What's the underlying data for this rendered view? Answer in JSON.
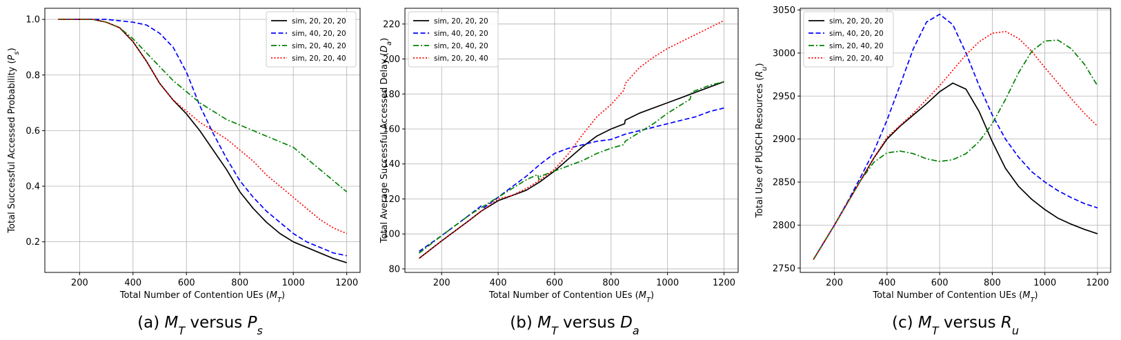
{
  "chart_data": [
    {
      "type": "line",
      "caption": "(a) M_T versus P_s",
      "xlabel": "Total Number of Contention UEs (M_T)",
      "ylabel": "Total Successful Accessed Probability (P_s)",
      "xlim": [
        70,
        1250
      ],
      "ylim": [
        0.09,
        1.04
      ],
      "xticks": [
        200,
        400,
        600,
        800,
        1000,
        1200
      ],
      "yticks": [
        0.2,
        0.4,
        0.6,
        0.8,
        1.0
      ],
      "ytick_labels": [
        "0.2",
        "0.4",
        "0.6",
        "0.8",
        "1.0"
      ],
      "grid": true,
      "legend_position": "top-right",
      "series": [
        {
          "name": "sim, 20, 20, 20",
          "color": "#000000",
          "dash": "solid",
          "x": [
            120,
            200,
            250,
            300,
            350,
            400,
            450,
            500,
            550,
            600,
            650,
            700,
            750,
            800,
            850,
            900,
            950,
            1000,
            1050,
            1100,
            1150,
            1200
          ],
          "y": [
            1.0,
            1.0,
            1.0,
            0.99,
            0.97,
            0.92,
            0.85,
            0.77,
            0.71,
            0.66,
            0.6,
            0.53,
            0.46,
            0.38,
            0.32,
            0.27,
            0.23,
            0.2,
            0.18,
            0.16,
            0.14,
            0.125
          ]
        },
        {
          "name": "sim, 40, 20, 20",
          "color": "#0000ff",
          "dash": "dashed",
          "x": [
            120,
            200,
            300,
            400,
            450,
            500,
            550,
            600,
            650,
            700,
            750,
            800,
            850,
            900,
            950,
            1000,
            1050,
            1100,
            1150,
            1200
          ],
          "y": [
            1.0,
            1.0,
            1.0,
            0.99,
            0.98,
            0.95,
            0.9,
            0.81,
            0.69,
            0.59,
            0.5,
            0.42,
            0.36,
            0.31,
            0.27,
            0.23,
            0.2,
            0.18,
            0.16,
            0.15
          ]
        },
        {
          "name": "sim, 20, 40, 20",
          "color": "#008000",
          "dash": "dashdot",
          "x": [
            120,
            200,
            250,
            300,
            350,
            400,
            450,
            500,
            550,
            600,
            650,
            700,
            750,
            800,
            850,
            900,
            950,
            1000,
            1050,
            1100,
            1150,
            1200
          ],
          "y": [
            1.0,
            1.0,
            1.0,
            0.99,
            0.97,
            0.93,
            0.88,
            0.83,
            0.78,
            0.74,
            0.7,
            0.67,
            0.64,
            0.62,
            0.6,
            0.58,
            0.56,
            0.54,
            0.5,
            0.46,
            0.42,
            0.38
          ]
        },
        {
          "name": "sim, 20, 20, 40",
          "color": "#ff0000",
          "dash": "dotted",
          "x": [
            120,
            200,
            250,
            300,
            350,
            400,
            450,
            500,
            550,
            600,
            650,
            700,
            750,
            800,
            850,
            900,
            950,
            1000,
            1050,
            1100,
            1150,
            1200
          ],
          "y": [
            1.0,
            1.0,
            1.0,
            0.99,
            0.97,
            0.92,
            0.85,
            0.77,
            0.71,
            0.67,
            0.63,
            0.6,
            0.57,
            0.53,
            0.49,
            0.44,
            0.4,
            0.36,
            0.32,
            0.28,
            0.25,
            0.23
          ]
        }
      ]
    },
    {
      "type": "line",
      "caption": "(b) M_T versus D_a",
      "xlabel": "Total Number of Contention UEs (M_T)",
      "ylabel": "Total Average Successful Accessed Delay (D_a)",
      "xlim": [
        70,
        1250
      ],
      "ylim": [
        78,
        229
      ],
      "xticks": [
        200,
        400,
        600,
        800,
        1000,
        1200
      ],
      "yticks": [
        80,
        100,
        120,
        140,
        160,
        180,
        200,
        220
      ],
      "ytick_labels": [
        "80",
        "100",
        "120",
        "140",
        "160",
        "180",
        "200",
        "220"
      ],
      "grid": true,
      "legend_position": "top-left",
      "series": [
        {
          "name": "sim, 20, 20, 20",
          "color": "#000000",
          "dash": "solid",
          "x": [
            120,
            200,
            250,
            300,
            340,
            350,
            400,
            450,
            500,
            550,
            600,
            650,
            700,
            750,
            800,
            848,
            850,
            900,
            950,
            1000,
            1050,
            1100,
            1150,
            1200
          ],
          "y": [
            86,
            96,
            102,
            108,
            113,
            114,
            119,
            122,
            125,
            130,
            136,
            143,
            150,
            156,
            160,
            163,
            165,
            169,
            172,
            175,
            178,
            181,
            184,
            187
          ]
        },
        {
          "name": "sim, 40, 20, 20",
          "color": "#0000ff",
          "dash": "dashed",
          "x": [
            120,
            200,
            250,
            300,
            340,
            350,
            400,
            450,
            500,
            550,
            600,
            650,
            700,
            750,
            800,
            850,
            900,
            950,
            1000,
            1050,
            1100,
            1150,
            1200
          ],
          "y": [
            90,
            99,
            105,
            111,
            116,
            115,
            121,
            127,
            133,
            140,
            146,
            149,
            151,
            153,
            154,
            157,
            159,
            161,
            163,
            165,
            167,
            170,
            172
          ]
        },
        {
          "name": "sim, 20, 40, 20",
          "color": "#008000",
          "dash": "dashdot",
          "x": [
            120,
            200,
            250,
            300,
            340,
            350,
            400,
            450,
            500,
            540,
            545,
            550,
            600,
            650,
            700,
            750,
            800,
            845,
            850,
            900,
            950,
            1000,
            1050,
            1080,
            1085,
            1100,
            1150,
            1200
          ],
          "y": [
            89,
            99,
            105,
            111,
            115,
            116,
            121,
            126,
            131,
            134,
            131,
            133,
            136,
            139,
            142,
            146,
            149,
            151,
            153,
            158,
            163,
            169,
            174,
            177,
            181,
            182,
            185,
            187
          ]
        },
        {
          "name": "sim, 20, 20, 40",
          "color": "#ff0000",
          "dash": "dotted",
          "x": [
            120,
            200,
            250,
            300,
            340,
            350,
            400,
            450,
            500,
            550,
            600,
            650,
            700,
            750,
            800,
            845,
            850,
            900,
            950,
            1000,
            1050,
            1100,
            1150,
            1200
          ],
          "y": [
            86,
            96,
            102,
            108,
            113,
            114,
            120,
            122,
            126,
            131,
            137,
            146,
            157,
            167,
            174,
            182,
            186,
            195,
            201,
            206,
            210,
            214,
            218,
            222
          ]
        }
      ]
    },
    {
      "type": "line",
      "caption": "(c) M_T versus R_u",
      "xlabel": "Total Number of Contention UEs (M_T)",
      "ylabel": "Total Use of PUSCH Resources (R_u)",
      "xlim": [
        70,
        1250
      ],
      "ylim": [
        2745,
        3052
      ],
      "xticks": [
        200,
        400,
        600,
        800,
        1000,
        1200
      ],
      "yticks": [
        2750,
        2800,
        2850,
        2900,
        2950,
        3000,
        3050
      ],
      "ytick_labels": [
        "2750",
        "2800",
        "2850",
        "2900",
        "2950",
        "3000",
        "3050"
      ],
      "grid": true,
      "legend_position": "top-left",
      "series": [
        {
          "name": "sim, 20, 20, 20",
          "color": "#000000",
          "dash": "solid",
          "x": [
            120,
            200,
            250,
            300,
            350,
            400,
            450,
            500,
            550,
            600,
            650,
            700,
            750,
            800,
            850,
            900,
            950,
            1000,
            1050,
            1100,
            1150,
            1200
          ],
          "y": [
            2760,
            2800,
            2826,
            2852,
            2878,
            2900,
            2915,
            2928,
            2941,
            2955,
            2965,
            2958,
            2932,
            2897,
            2866,
            2845,
            2830,
            2818,
            2808,
            2801,
            2795,
            2790
          ]
        },
        {
          "name": "sim, 40, 20, 20",
          "color": "#0000ff",
          "dash": "dashed",
          "x": [
            120,
            200,
            250,
            300,
            350,
            400,
            450,
            500,
            550,
            600,
            650,
            700,
            750,
            800,
            850,
            900,
            950,
            1000,
            1050,
            1100,
            1150,
            1200
          ],
          "y": [
            2760,
            2800,
            2827,
            2856,
            2886,
            2922,
            2963,
            3005,
            3036,
            3045,
            3033,
            3000,
            2962,
            2928,
            2900,
            2879,
            2862,
            2850,
            2840,
            2832,
            2825,
            2820
          ]
        },
        {
          "name": "sim, 20, 40, 20",
          "color": "#008000",
          "dash": "dashdot",
          "x": [
            120,
            200,
            250,
            300,
            350,
            400,
            450,
            500,
            550,
            600,
            650,
            700,
            750,
            800,
            850,
            900,
            950,
            1000,
            1050,
            1100,
            1150,
            1200
          ],
          "y": [
            2760,
            2800,
            2826,
            2852,
            2873,
            2884,
            2886,
            2883,
            2877,
            2874,
            2876,
            2883,
            2897,
            2918,
            2946,
            2977,
            3002,
            3014,
            3015,
            3005,
            2987,
            2962
          ]
        },
        {
          "name": "sim, 20, 20, 40",
          "color": "#ff0000",
          "dash": "dotted",
          "x": [
            120,
            200,
            250,
            300,
            350,
            400,
            450,
            500,
            550,
            600,
            650,
            700,
            750,
            800,
            850,
            900,
            950,
            1000,
            1050,
            1100,
            1150,
            1200
          ],
          "y": [
            2760,
            2800,
            2826,
            2852,
            2878,
            2902,
            2916,
            2930,
            2946,
            2962,
            2980,
            2998,
            3013,
            3023,
            3025,
            3017,
            3002,
            2983,
            2965,
            2947,
            2930,
            2915
          ]
        }
      ]
    }
  ]
}
